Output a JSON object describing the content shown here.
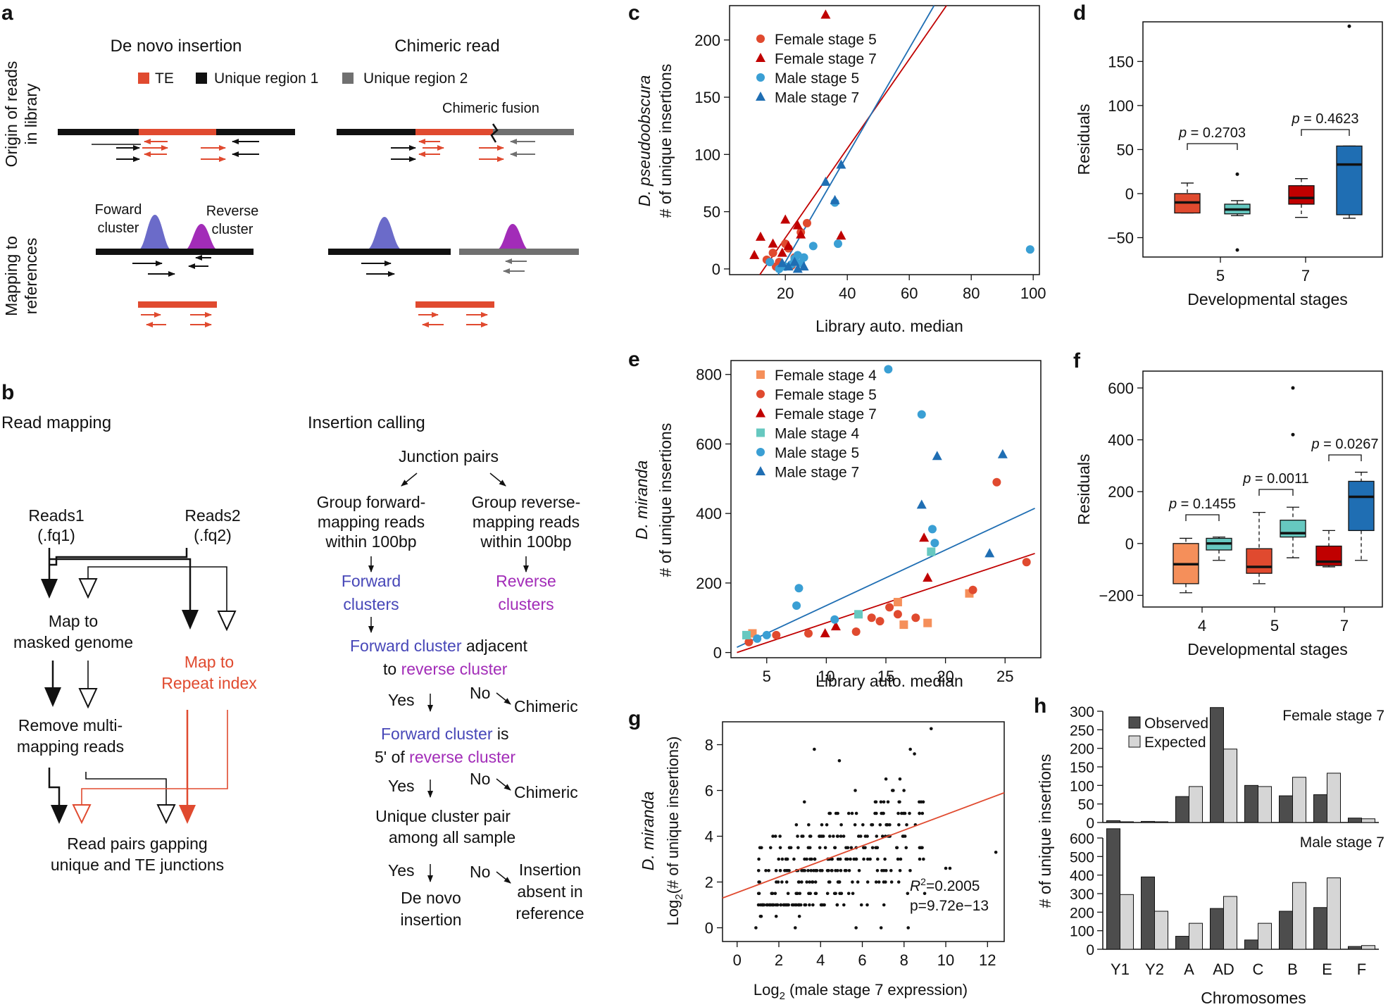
{
  "colors": {
    "te": "#e04a2f",
    "red": "#e04a2f",
    "darkred": "#c00000",
    "blue": "#3a9fd4",
    "darkblue": "#1f6eb3",
    "orange": "#f58f5a",
    "teal": "#66c8c0",
    "fwd": "#6b6bc9",
    "rev": "#a22cb8",
    "obs": "#4d4d4d",
    "exp": "#d6d6d6",
    "black": "#111111",
    "gray": "#707070"
  },
  "labels": {
    "a": "a",
    "b": "b",
    "c": "c",
    "d": "d",
    "e": "e",
    "f": "f",
    "g": "g",
    "h": "h"
  },
  "panel_a": {
    "title_left": "De novo insertion",
    "title_right": "Chimeric read",
    "legend": [
      "TE",
      "Unique region 1",
      "Unique region 2"
    ],
    "row1": [
      "Origin of reads",
      "in library"
    ],
    "row2": [
      "Mapping to",
      "references"
    ],
    "chimeric_fusion": "Chimeric fusion",
    "forward_cluster": [
      "Foward",
      "cluster"
    ],
    "reverse_cluster": [
      "Reverse",
      "cluster"
    ]
  },
  "panel_b": {
    "read_mapping": "Read mapping",
    "insertion_calling": "Insertion calling",
    "reads1": [
      "Reads1",
      "(.fq1)"
    ],
    "reads2": [
      "Reads2",
      "(.fq2)"
    ],
    "map_masked": [
      "Map to",
      "masked genome"
    ],
    "map_repeat": [
      "Map to",
      "Repeat index"
    ],
    "remove_multi": [
      "Remove multi-",
      "mapping reads"
    ],
    "read_pairs": [
      "Read pairs gapping",
      "unique and TE junctions"
    ],
    "junction_pairs": "Junction pairs",
    "group_fwd": [
      "Group forward-",
      "mapping reads",
      "within 100bp"
    ],
    "group_rev": [
      "Group reverse-",
      "mapping reads",
      "within 100bp"
    ],
    "fwd_clusters": [
      "Forward",
      "clusters"
    ],
    "rev_clusters": [
      "Reverse",
      "clusters"
    ],
    "q1_a": "Forward cluster",
    "q1_b": " adjacent",
    "q1_c": "to ",
    "q1_d": "reverse cluster",
    "q2_a": "Forward cluster",
    "q2_b": " is",
    "q2_c": "5' of ",
    "q2_d": "reverse cluster",
    "q3": [
      "Unique cluster pair",
      "among all sample"
    ],
    "yes": "Yes",
    "no": "No",
    "chimeric": "Chimeric",
    "de_novo": [
      "De novo",
      "insertion"
    ],
    "absent": [
      "Insertion",
      "absent in",
      "reference"
    ]
  },
  "chart_data": [
    {
      "panel": "c",
      "type": "scatter",
      "species": "D. pseudoobscura",
      "ylabel": "# of unique insertions",
      "xlabel": "Library auto. median",
      "xlim": [
        2,
        102
      ],
      "ylim": [
        -5,
        230
      ],
      "xticks": [
        20,
        40,
        60,
        80,
        100
      ],
      "yticks": [
        0,
        50,
        100,
        150,
        200
      ],
      "legend": [
        {
          "label": "Female stage 5",
          "color": "#e04a2f",
          "marker": "circle"
        },
        {
          "label": "Female stage 7",
          "color": "#c00000",
          "marker": "triangle"
        },
        {
          "label": "Male stage 5",
          "color": "#3a9fd4",
          "marker": "circle"
        },
        {
          "label": "Male stage 7",
          "color": "#1f6eb3",
          "marker": "triangle"
        }
      ],
      "series": [
        {
          "name": "Female stage 5",
          "marker": "circle",
          "color": "#e04a2f",
          "points": [
            [
              14,
              8
            ],
            [
              16,
              14
            ],
            [
              17,
              2
            ],
            [
              18,
              6
            ],
            [
              20,
              22
            ],
            [
              21,
              18
            ],
            [
              22,
              3
            ],
            [
              23,
              10
            ],
            [
              25,
              32
            ],
            [
              27,
              40
            ]
          ]
        },
        {
          "name": "Female stage 7",
          "marker": "triangle",
          "color": "#c00000",
          "points": [
            [
              10,
              12
            ],
            [
              12,
              28
            ],
            [
              16,
              22
            ],
            [
              19,
              14
            ],
            [
              20,
              43
            ],
            [
              21,
              20
            ],
            [
              24,
              38
            ],
            [
              25,
              30
            ],
            [
              33,
              222
            ],
            [
              38,
              29
            ]
          ]
        },
        {
          "name": "Male stage 5",
          "marker": "circle",
          "color": "#3a9fd4",
          "points": [
            [
              15,
              6
            ],
            [
              18,
              0
            ],
            [
              20,
              2
            ],
            [
              22,
              4
            ],
            [
              23,
              9
            ],
            [
              24,
              12
            ],
            [
              25,
              5
            ],
            [
              26,
              10
            ],
            [
              29,
              20
            ],
            [
              36,
              58
            ],
            [
              37,
              22
            ],
            [
              99,
              17
            ]
          ]
        },
        {
          "name": "Male stage 7",
          "marker": "triangle",
          "color": "#1f6eb3",
          "points": [
            [
              19,
              5
            ],
            [
              21,
              2
            ],
            [
              23,
              6
            ],
            [
              24,
              0
            ],
            [
              26,
              2
            ],
            [
              33,
              76
            ],
            [
              36,
              60
            ],
            [
              38,
              91
            ]
          ]
        }
      ],
      "lines": [
        {
          "color": "#c00000",
          "x": [
            11,
            72
          ],
          "y": [
            -8,
            230
          ]
        },
        {
          "color": "#1f6eb3",
          "x": [
            17,
            68
          ],
          "y": [
            -8,
            230
          ]
        }
      ]
    },
    {
      "panel": "d",
      "type": "boxplot",
      "ylabel": "Residuals",
      "xlabel": "Developmental stages",
      "ylim": [
        -72,
        195
      ],
      "yticks": [
        -50,
        0,
        50,
        100,
        150
      ],
      "groups": [
        "5",
        "7"
      ],
      "boxes": [
        {
          "stage": "5",
          "color": "#e04a2f",
          "q1": -22,
          "med": -10,
          "q3": 0,
          "lo": -22,
          "hi": 12,
          "out": []
        },
        {
          "stage": "5",
          "color": "#66c8c0",
          "q1": -23,
          "med": -18,
          "q3": -12,
          "lo": -25,
          "hi": -8,
          "out": [
            -64,
            22
          ]
        },
        {
          "stage": "7",
          "color": "#c00000",
          "q1": -12,
          "med": -5,
          "q3": 9,
          "lo": -27,
          "hi": 17,
          "out": []
        },
        {
          "stage": "7",
          "color": "#1f6eb3",
          "q1": -24,
          "med": 33,
          "q3": 54,
          "lo": -28,
          "hi": 54,
          "out": [
            190
          ]
        }
      ],
      "pvalues": [
        "p = 0.2703",
        "p = 0.4623"
      ]
    },
    {
      "panel": "e",
      "type": "scatter",
      "species": "D. miranda",
      "ylabel": "# of unique insertions",
      "xlabel": "Library auto. median",
      "xlim": [
        2,
        28
      ],
      "ylim": [
        -15,
        840
      ],
      "xticks": [
        5,
        10,
        15,
        20,
        25
      ],
      "yticks": [
        0,
        200,
        400,
        600,
        800
      ],
      "legend": [
        {
          "label": "Female stage 4",
          "color": "#f58f5a",
          "marker": "square"
        },
        {
          "label": "Female stage 5",
          "color": "#e04a2f",
          "marker": "circle"
        },
        {
          "label": "Female stage 7",
          "color": "#c00000",
          "marker": "triangle"
        },
        {
          "label": "Male stage 4",
          "color": "#66c8c0",
          "marker": "square"
        },
        {
          "label": "Male stage 5",
          "color": "#3a9fd4",
          "marker": "circle"
        },
        {
          "label": "Male stage 7",
          "color": "#1f6eb3",
          "marker": "triangle"
        }
      ],
      "series": [
        {
          "name": "Female stage 4",
          "marker": "square",
          "color": "#f58f5a",
          "points": [
            [
              3.8,
              55
            ],
            [
              16,
              145
            ],
            [
              16.5,
              80
            ],
            [
              18.5,
              85
            ],
            [
              22,
              170
            ]
          ]
        },
        {
          "name": "Female stage 5",
          "marker": "circle",
          "color": "#e04a2f",
          "points": [
            [
              3.5,
              30
            ],
            [
              5.8,
              50
            ],
            [
              8.5,
              55
            ],
            [
              12.5,
              60
            ],
            [
              13.8,
              100
            ],
            [
              14.5,
              90
            ],
            [
              15.3,
              130
            ],
            [
              16,
              110
            ],
            [
              17.5,
              100
            ],
            [
              22.3,
              180
            ],
            [
              24.3,
              490
            ],
            [
              26.8,
              260
            ]
          ]
        },
        {
          "name": "Female stage 7",
          "marker": "triangle",
          "color": "#c00000",
          "points": [
            [
              9.9,
              55
            ],
            [
              10.8,
              75
            ],
            [
              18.2,
              330
            ],
            [
              18.5,
              215
            ]
          ]
        },
        {
          "name": "Male stage 4",
          "marker": "square",
          "color": "#66c8c0",
          "points": [
            [
              3.3,
              50
            ],
            [
              12.7,
              110
            ],
            [
              18.8,
              290
            ]
          ]
        },
        {
          "name": "Male stage 5",
          "marker": "circle",
          "color": "#3a9fd4",
          "points": [
            [
              4.2,
              40
            ],
            [
              5,
              50
            ],
            [
              7.5,
              135
            ],
            [
              7.7,
              185
            ],
            [
              10.7,
              95
            ],
            [
              15.2,
              815
            ],
            [
              18,
              685
            ],
            [
              18.9,
              355
            ],
            [
              19.1,
              315
            ]
          ]
        },
        {
          "name": "Male stage 7",
          "marker": "triangle",
          "color": "#1f6eb3",
          "points": [
            [
              18,
              425
            ],
            [
              19.3,
              565
            ],
            [
              23.7,
              285
            ],
            [
              24.8,
              570
            ]
          ]
        }
      ],
      "lines": [
        {
          "color": "#1f6eb3",
          "x": [
            2.5,
            27.5
          ],
          "y": [
            15,
            415
          ]
        },
        {
          "color": "#c00000",
          "x": [
            2.5,
            27.5
          ],
          "y": [
            0,
            285
          ]
        }
      ]
    },
    {
      "panel": "f",
      "type": "boxplot",
      "ylabel": "Residuals",
      "xlabel": "Developmental stages",
      "ylim": [
        -245,
        665
      ],
      "yticks": [
        -200,
        0,
        200,
        400,
        600
      ],
      "groups": [
        "4",
        "5",
        "7"
      ],
      "boxes": [
        {
          "stage": "4",
          "color": "#f58f5a",
          "q1": -155,
          "med": -80,
          "q3": 0,
          "lo": -190,
          "hi": 20,
          "out": []
        },
        {
          "stage": "4",
          "color": "#66c8c0",
          "q1": -25,
          "med": 0,
          "q3": 20,
          "lo": -65,
          "hi": 25,
          "out": []
        },
        {
          "stage": "5",
          "color": "#e04a2f",
          "q1": -115,
          "med": -90,
          "q3": -20,
          "lo": -155,
          "hi": 120,
          "out": []
        },
        {
          "stage": "5",
          "color": "#66c8c0",
          "q1": 25,
          "med": 40,
          "q3": 90,
          "lo": -55,
          "hi": 140,
          "out": [
            420,
            600
          ]
        },
        {
          "stage": "7",
          "color": "#c00000",
          "q1": -85,
          "med": -70,
          "q3": -10,
          "lo": -90,
          "hi": 50,
          "out": []
        },
        {
          "stage": "7",
          "color": "#1f6eb3",
          "q1": 50,
          "med": 180,
          "q3": 240,
          "lo": -65,
          "hi": 275,
          "out": []
        }
      ],
      "pvalues": [
        "p = 0.1455",
        "p = 0.0011",
        "p = 0.0267"
      ]
    },
    {
      "panel": "g",
      "type": "scatter",
      "species": "D. miranda",
      "ylabel": "Log2(# of unique insertions)",
      "xlabel": "Log2 (male stage 7 expression)",
      "xlim": [
        -0.7,
        12.8
      ],
      "ylim": [
        -0.6,
        9
      ],
      "xticks": [
        0,
        2,
        4,
        6,
        8,
        10,
        12
      ],
      "yticks": [
        0,
        2,
        4,
        6,
        8
      ],
      "r2": "0.2005",
      "pval": "p=9.72e−13",
      "fit": {
        "x": [
          -0.7,
          12.8
        ],
        "y": [
          1.3,
          5.9
        ]
      }
    },
    {
      "panel": "h",
      "type": "bar",
      "ylabel": "# of unique insertions",
      "xlabel": "Chromosomes",
      "categories": [
        "Y1",
        "Y2",
        "A",
        "AD",
        "C",
        "B",
        "E",
        "F"
      ],
      "legend": [
        "Observed",
        "Expected"
      ],
      "facets": [
        {
          "title": "Female stage 7",
          "ylim": [
            0,
            300
          ],
          "yticks": [
            0,
            50,
            100,
            150,
            200,
            250,
            300
          ],
          "observed": [
            5,
            3,
            70,
            310,
            100,
            72,
            75,
            12
          ],
          "expected": [
            2,
            2,
            97,
            198,
            97,
            122,
            133,
            10
          ]
        },
        {
          "title": "Male stage 7",
          "ylim": [
            0,
            600
          ],
          "yticks": [
            0,
            100,
            200,
            300,
            400,
            500,
            600
          ],
          "observed": [
            650,
            390,
            70,
            220,
            50,
            205,
            225,
            15
          ],
          "expected": [
            295,
            205,
            140,
            285,
            140,
            360,
            385,
            20
          ]
        }
      ]
    }
  ]
}
